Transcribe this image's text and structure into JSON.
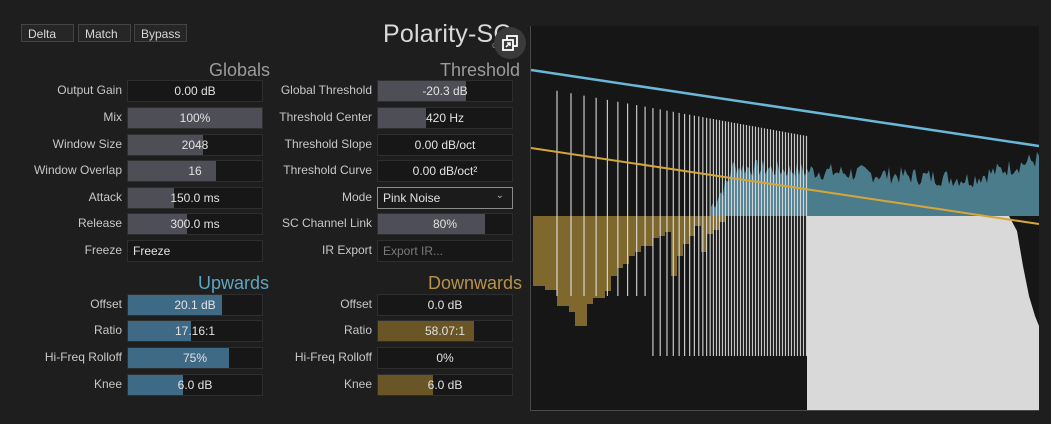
{
  "header": {
    "buttons": [
      "Delta",
      "Match",
      "Bypass"
    ],
    "title": "Polarity-SC",
    "title_sub": "c"
  },
  "overlay_icons": [
    "popout-icon",
    "skip-next-icon"
  ],
  "sections": {
    "globals": "Globals",
    "threshold": "Threshold",
    "upwards": "Upwards",
    "downwards": "Downwards"
  },
  "globals": {
    "output_gain": {
      "label": "Output Gain",
      "value": "0.00 dB",
      "level": 0.0
    },
    "mix": {
      "label": "Mix",
      "value": "100%",
      "level": 1.0
    },
    "window_size": {
      "label": "Window Size",
      "value": "2048",
      "level": 0.56
    },
    "window_overlap": {
      "label": "Window Overlap",
      "value": "16",
      "level": 0.66
    },
    "attack": {
      "label": "Attack",
      "value": "150.0 ms",
      "level": 0.34
    },
    "release": {
      "label": "Release",
      "value": "300.0 ms",
      "level": 0.44
    },
    "freeze": {
      "label": "Freeze",
      "value": "Freeze"
    }
  },
  "threshold": {
    "global_threshold": {
      "label": "Global Threshold",
      "value": "-20.3 dB",
      "level": 0.66
    },
    "threshold_center": {
      "label": "Threshold Center",
      "value": "420 Hz",
      "level": 0.36
    },
    "threshold_slope": {
      "label": "Threshold Slope",
      "value": "0.00 dB/oct",
      "level": 0.0
    },
    "threshold_curve": {
      "label": "Threshold Curve",
      "value": "0.00 dB/oct²",
      "level": 0.0
    },
    "mode": {
      "label": "Mode",
      "value": "Pink Noise"
    },
    "sc_channel_link": {
      "label": "SC Channel Link",
      "value": "80%",
      "level": 0.8
    },
    "ir_export": {
      "label": "IR Export",
      "value": "Export IR..."
    }
  },
  "upwards": {
    "offset": {
      "label": "Offset",
      "value": "20.1 dB",
      "level": 0.7
    },
    "ratio": {
      "label": "Ratio",
      "value": "17.16:1",
      "level": 0.47
    },
    "hi_freq_rolloff": {
      "label": "Hi-Freq Rolloff",
      "value": "75%",
      "level": 0.75
    },
    "knee": {
      "label": "Knee",
      "value": "6.0 dB",
      "level": 0.41
    }
  },
  "downwards": {
    "offset": {
      "label": "Offset",
      "value": "0.0 dB",
      "level": 0.0
    },
    "ratio": {
      "label": "Ratio",
      "value": "58.07:1",
      "level": 0.72
    },
    "hi_freq_rolloff": {
      "label": "Hi-Freq Rolloff",
      "value": "0%",
      "level": 0.0
    },
    "knee": {
      "label": "Knee",
      "value": "6.0 dB",
      "level": 0.41
    }
  },
  "colors": {
    "accent_blue": "#5da6c2",
    "accent_gold": "#b8924a",
    "threshold_line": "#6ab7d8",
    "spectrum_teal": "#5e9fb4",
    "gain_gold": "#8a7130"
  }
}
